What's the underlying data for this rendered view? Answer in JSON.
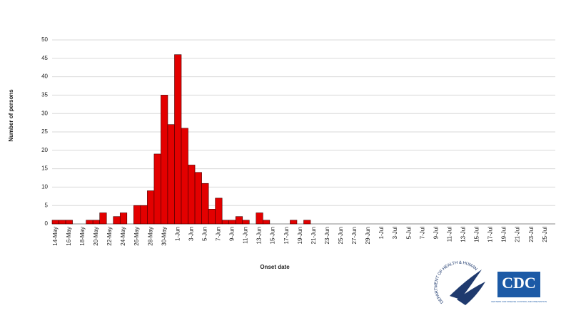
{
  "chart_data": {
    "type": "bar",
    "y_label": "Number of persons",
    "x_label": "Onset date",
    "categories": [
      "14-May",
      null,
      "16-May",
      null,
      "18-May",
      null,
      "20-May",
      null,
      "22-May",
      null,
      "24-May",
      null,
      "26-May",
      null,
      "28-May",
      null,
      "30-May",
      null,
      "1-Jun",
      null,
      "3-Jun",
      null,
      "5-Jun",
      null,
      "7-Jun",
      null,
      "9-Jun",
      null,
      "11-Jun",
      null,
      "13-Jun",
      null,
      "15-Jun",
      null,
      "17-Jun",
      null,
      "19-Jun",
      null,
      "21-Jun",
      null,
      "23-Jun",
      null,
      "25-Jun",
      null,
      "27-Jun",
      null,
      "29-Jun",
      null,
      "1-Jul",
      null,
      "3-Jul",
      null,
      "5-Jul",
      null,
      "7-Jul",
      null,
      "9-Jul",
      null,
      "11-Jul",
      null,
      "13-Jul",
      null,
      "15-Jul",
      null,
      "17-Jul",
      null,
      "19-Jul",
      null,
      "21-Jul",
      null,
      "23-Jul",
      null,
      "25-Jul",
      null
    ],
    "values": [
      1,
      1,
      1,
      0,
      0,
      1,
      1,
      3,
      0,
      2,
      3,
      0,
      5,
      5,
      9,
      19,
      35,
      27,
      46,
      26,
      16,
      14,
      11,
      4,
      7,
      1,
      1,
      2,
      1,
      0,
      3,
      1,
      0,
      0,
      0,
      1,
      0,
      1,
      0,
      0,
      0,
      0,
      0,
      0,
      0,
      0,
      0,
      0,
      0,
      0,
      0,
      0,
      0,
      0,
      0,
      0,
      0,
      0,
      0,
      0,
      0,
      0,
      0,
      0,
      0,
      0,
      0,
      0,
      0,
      0,
      0,
      0,
      0,
      0
    ],
    "color": "#e30000",
    "ylim": [
      0,
      50
    ],
    "yticks": [
      0,
      5,
      10,
      15,
      20,
      25,
      30,
      35,
      40,
      45,
      50
    ],
    "grid": true
  },
  "logos": {
    "hhs": "DEPARTMENT OF HEALTH & HUMAN SERVICES USA",
    "cdc": "CDC",
    "cdc_sub": "CENTERS FOR DISEASE CONTROL AND PREVENTION"
  }
}
